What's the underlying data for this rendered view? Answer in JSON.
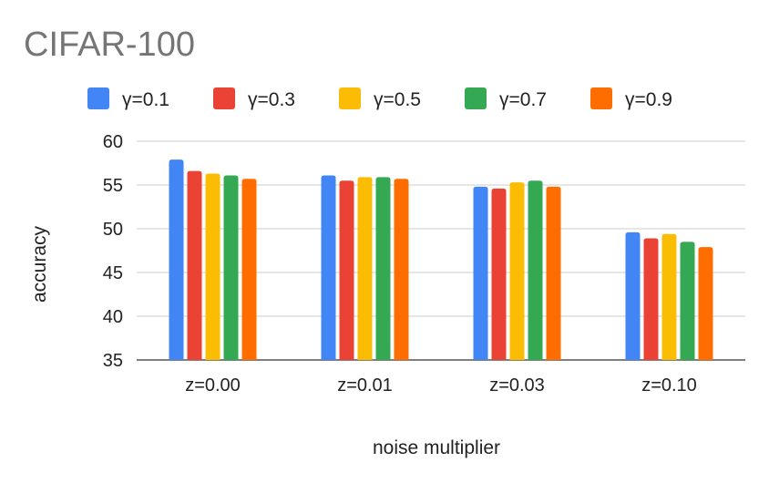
{
  "chart_data": {
    "type": "bar",
    "title": "CIFAR-100",
    "xlabel": "noise multiplier",
    "ylabel": "accuracy",
    "ylim": [
      35,
      60
    ],
    "yticks": [
      35,
      40,
      45,
      50,
      55,
      60
    ],
    "grid": true,
    "legend_position": "top",
    "categories": [
      "z=0.00",
      "z=0.01",
      "z=0.03",
      "z=0.10"
    ],
    "series": [
      {
        "name": "γ=0.1",
        "color": "#4285f4",
        "values": [
          57.9,
          56.1,
          54.8,
          49.6
        ]
      },
      {
        "name": "γ=0.3",
        "color": "#ea4335",
        "values": [
          56.6,
          55.5,
          54.6,
          48.9
        ]
      },
      {
        "name": "γ=0.5",
        "color": "#fbbc04",
        "values": [
          56.3,
          55.9,
          55.3,
          49.4
        ]
      },
      {
        "name": "γ=0.7",
        "color": "#34a853",
        "values": [
          56.1,
          55.9,
          55.5,
          48.5
        ]
      },
      {
        "name": "γ=0.9",
        "color": "#ff6d01",
        "values": [
          55.7,
          55.7,
          54.8,
          47.9
        ]
      }
    ]
  }
}
